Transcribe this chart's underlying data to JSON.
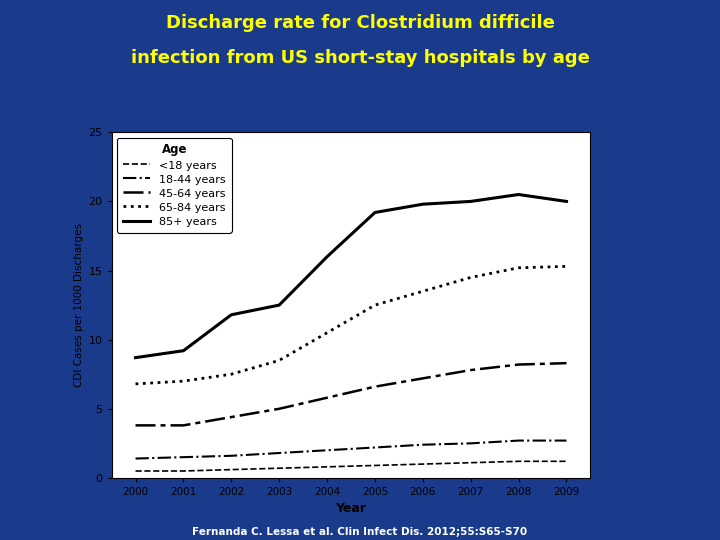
{
  "title_line1": "Discharge rate for Clostridium difficile",
  "title_line2": "infection from US short-stay hospitals by age",
  "title_color": "#FFFF00",
  "background_color": "#1a3a8c",
  "plot_bg_color": "#ffffff",
  "xlabel": "Year",
  "ylabel": "CDI Cases per 1000 Discharges",
  "legend_title": "Age",
  "footnote": "Fernanda C. Lessa et al. Clin Infect Dis. 2012;55:S65-S70",
  "years": [
    2000,
    2001,
    2002,
    2003,
    2004,
    2005,
    2006,
    2007,
    2008,
    2009
  ],
  "series": [
    {
      "label": "<18 years",
      "linestyle": "--",
      "color": "#000000",
      "linewidth": 1.2,
      "dashes": null,
      "values": [
        0.5,
        0.5,
        0.6,
        0.7,
        0.8,
        0.9,
        1.0,
        1.1,
        1.2,
        1.2
      ]
    },
    {
      "label": "18-44 years",
      "linestyle": "-.",
      "color": "#000000",
      "linewidth": 1.5,
      "dashes": null,
      "values": [
        1.4,
        1.5,
        1.6,
        1.8,
        2.0,
        2.2,
        2.4,
        2.5,
        2.7,
        2.7
      ]
    },
    {
      "label": "45-64 years",
      "linestyle": "--",
      "color": "#000000",
      "linewidth": 1.8,
      "dashes": [
        8,
        2,
        2,
        2
      ],
      "values": [
        3.8,
        3.8,
        4.4,
        5.0,
        5.8,
        6.6,
        7.2,
        7.8,
        8.2,
        8.3
      ]
    },
    {
      "label": "65-84 years",
      "linestyle": ":",
      "color": "#000000",
      "linewidth": 2.0,
      "dashes": null,
      "values": [
        6.8,
        7.0,
        7.5,
        8.5,
        10.5,
        12.5,
        13.5,
        14.5,
        15.2,
        15.3
      ]
    },
    {
      "label": "85+ years",
      "linestyle": "-",
      "color": "#000000",
      "linewidth": 2.2,
      "dashes": null,
      "values": [
        8.7,
        9.2,
        11.8,
        12.5,
        16.0,
        19.2,
        19.8,
        20.0,
        20.5,
        20.0
      ]
    }
  ],
  "ylim": [
    0,
    25
  ],
  "yticks": [
    0,
    5,
    10,
    15,
    20,
    25
  ],
  "xlim_min": 1999.5,
  "xlim_max": 2009.5
}
